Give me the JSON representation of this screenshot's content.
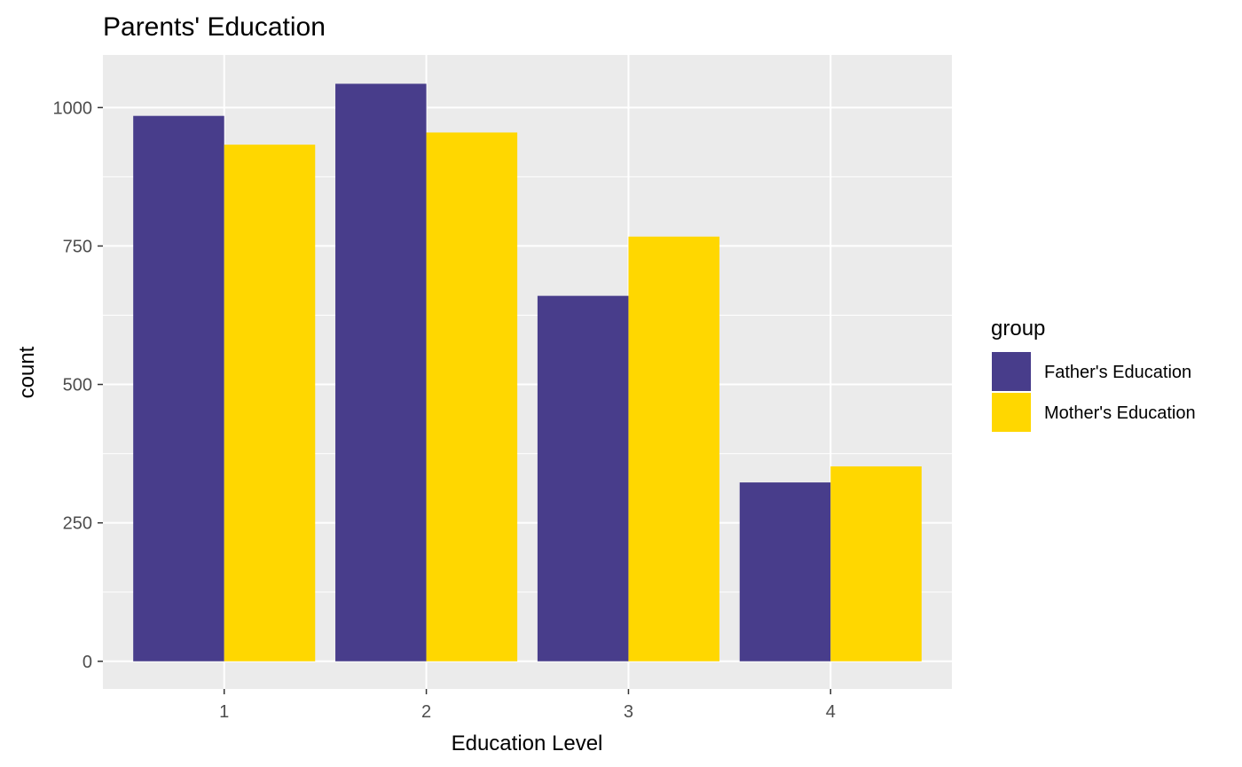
{
  "chart_data": {
    "type": "bar",
    "title": "Parents' Education",
    "xlabel": "Education Level",
    "ylabel": "count",
    "categories": [
      "1",
      "2",
      "3",
      "4"
    ],
    "series": [
      {
        "name": "Father's Education",
        "color": "#483D8B",
        "values": [
          985,
          1043,
          660,
          323
        ]
      },
      {
        "name": "Mother's Education",
        "color": "#FFD700",
        "values": [
          933,
          955,
          767,
          352
        ]
      }
    ],
    "ylim": [
      -50,
      1095
    ],
    "yticks": [
      0,
      250,
      500,
      750,
      1000
    ],
    "ytick_labels": [
      "0",
      "250",
      "500",
      "750",
      "1000"
    ],
    "legend": {
      "title": "group",
      "position": "right"
    },
    "grid": true,
    "panel_background": "#EBEBEB",
    "grid_color": "#FFFFFF"
  }
}
